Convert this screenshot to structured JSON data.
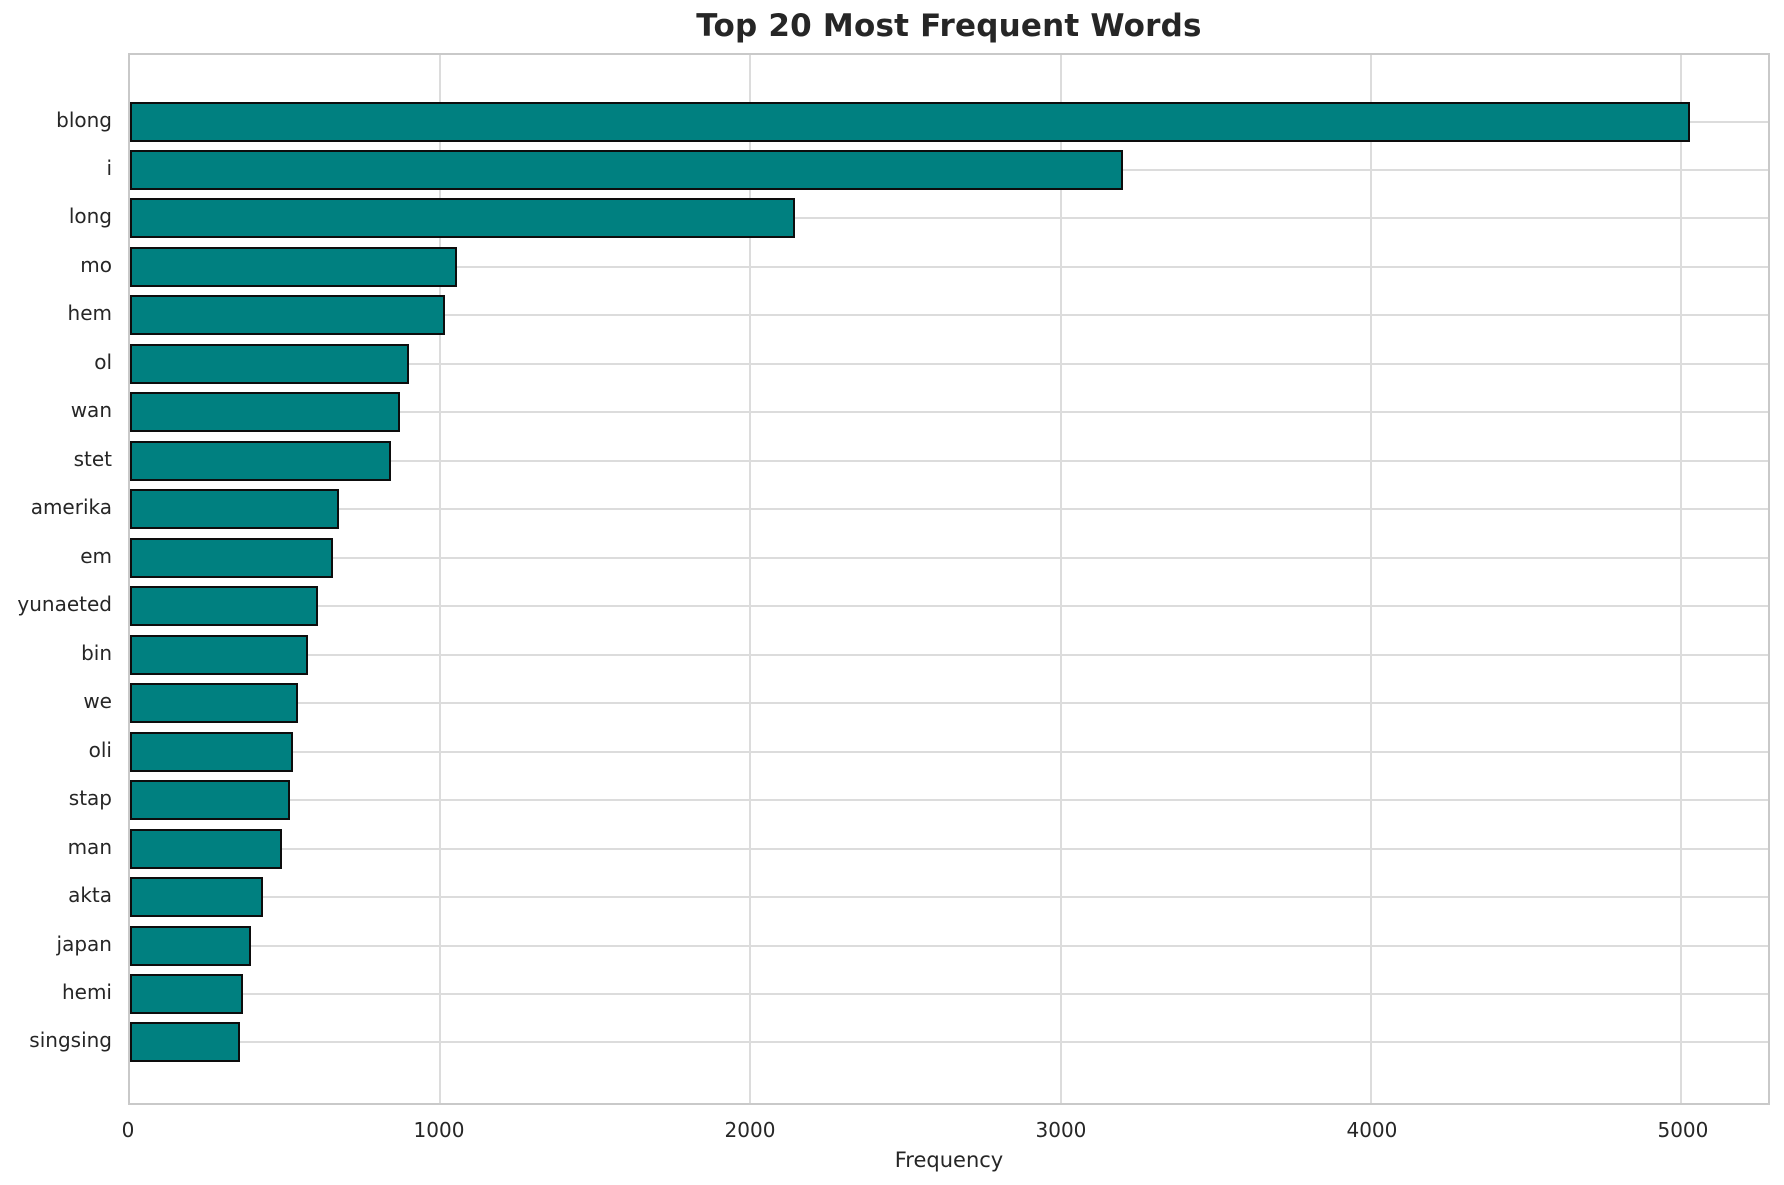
{
  "chart_data": {
    "type": "bar",
    "orientation": "horizontal",
    "title": "Top 20 Most Frequent Words",
    "xlabel": "Frequency",
    "ylabel": "",
    "categories": [
      "blong",
      "i",
      "long",
      "mo",
      "hem",
      "ol",
      "wan",
      "stet",
      "amerika",
      "em",
      "yunaeted",
      "bin",
      "we",
      "oli",
      "stap",
      "man",
      "akta",
      "japan",
      "hemi",
      "singsing"
    ],
    "values": [
      5030,
      3200,
      2145,
      1055,
      1015,
      900,
      870,
      840,
      675,
      655,
      605,
      575,
      540,
      525,
      515,
      490,
      430,
      390,
      365,
      355
    ],
    "x_ticks": [
      0,
      1000,
      2000,
      3000,
      4000,
      5000
    ],
    "xlim": [
      0,
      5280
    ],
    "grid": true,
    "legend": null,
    "colors": {
      "bar_fill": "#008080",
      "bar_edge": "#0d0d0d",
      "grid": "#dcdcdc",
      "spine": "#c9c9c9",
      "text": "#262626",
      "background": "#ffffff"
    }
  }
}
